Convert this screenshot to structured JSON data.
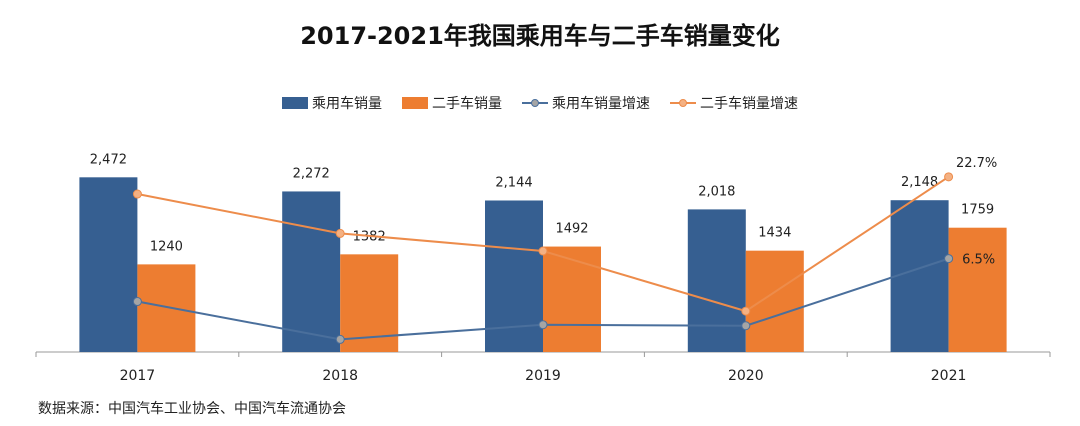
{
  "title": "2017-2021年我国乘用车与二手车销量变化",
  "source": "数据来源：中国汽车工业协会、中国汽车流通协会",
  "legend": {
    "passenger": "乘用车销量",
    "used": "二手车销量",
    "passenger_growth": "乘用车销量增速",
    "used_growth": "二手车销量增速"
  },
  "colors": {
    "passenger": "#365F91",
    "used": "#ED7D31",
    "passenger_line": "#4A6F9C",
    "used_line": "#ED8C4B",
    "passenger_marker": "#A5A5A5",
    "used_marker": "#F4B183"
  },
  "chart_data": {
    "type": "bar",
    "title": "2017-2021年我国乘用车与二手车销量变化",
    "categories": [
      "2017",
      "2018",
      "2019",
      "2020",
      "2021"
    ],
    "series": [
      {
        "name": "乘用车销量",
        "kind": "bar",
        "values": [
          2472,
          2272,
          2144,
          2018,
          2148
        ],
        "labels": [
          "2,472",
          "2,272",
          "2,144",
          "2,018",
          "2,148"
        ]
      },
      {
        "name": "二手车销量",
        "kind": "bar",
        "values": [
          1240,
          1382,
          1492,
          1434,
          1759
        ],
        "labels": [
          "1240",
          "1382",
          "1492",
          "1434",
          "1759"
        ]
      },
      {
        "name": "乘用车销量增速",
        "kind": "line",
        "values": [
          -2.0,
          -9.5,
          -6.6,
          -6.8,
          6.5
        ],
        "labels": [
          "",
          "",
          "",
          "",
          "6.5%"
        ]
      },
      {
        "name": "二手车销量增速",
        "kind": "line",
        "values": [
          19.3,
          11.5,
          8.0,
          -3.9,
          22.7
        ],
        "labels": [
          "",
          "",
          "",
          "",
          "22.7%"
        ]
      }
    ],
    "ylim_primary": [
      0,
      3000
    ],
    "ylim_secondary": [
      -12,
      30
    ],
    "xlabel": "",
    "ylabel": ""
  }
}
